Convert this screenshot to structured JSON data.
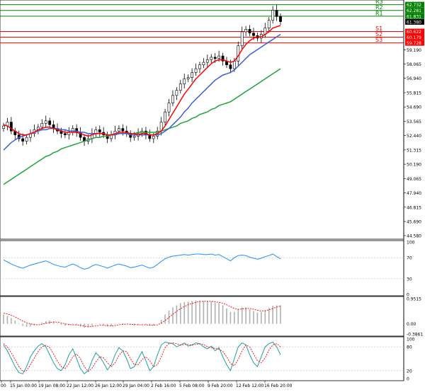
{
  "colors": {
    "background": "#ffffff",
    "grid_frame": "#000000",
    "bull_candle": "#ffffff",
    "bear_candle": "#000000",
    "resistance": "#008000",
    "support": "#ff0000",
    "ma_fast": "#ff0000",
    "ma_mid": "#3b5fd4",
    "ma_slow": "#22a33c",
    "rsi": "#1e90ff",
    "hist": "#b0b0b0",
    "signal": "#ff0000",
    "stoch_main": "#20a0a0",
    "stoch_signal": "#ff0000",
    "current_price_bg": "#000000"
  },
  "price_axis": {
    "ticks": [
      "59.190",
      "58.065",
      "56.940",
      "55.815",
      "54.690",
      "53.565",
      "52.440",
      "51.315",
      "50.190",
      "49.065",
      "47.940",
      "46.815",
      "45.690",
      "44.580"
    ]
  },
  "levels": [
    {
      "name": "R3",
      "price": "62.732",
      "kind": "resistance"
    },
    {
      "name": "R2",
      "price": "62.281",
      "kind": "resistance"
    },
    {
      "name": "R1",
      "price": "61.831",
      "kind": "resistance"
    },
    {
      "name": "S1",
      "price": "60.622",
      "kind": "support"
    },
    {
      "name": "S2",
      "price": "60.179",
      "kind": "support"
    },
    {
      "name": "S3",
      "price": "59.728",
      "kind": "support"
    }
  ],
  "current_price": "61.380",
  "rsi_panel": {
    "ticks": [
      "100",
      "70",
      "30",
      "0"
    ]
  },
  "macd_panel": {
    "ticks": [
      "0.9515",
      "0.00",
      "-0.3861"
    ]
  },
  "stoch_panel": {
    "ticks": [
      "100",
      "80",
      "20",
      "0"
    ]
  },
  "time_axis": {
    "labels": [
      "00",
      "15 Jan 00:00",
      "19 Jan 08:00",
      "22 Jan 12:00",
      "26 Jan 12:00",
      "29 Jan 04:00",
      "2 Feb 16:00",
      "5 Feb 08:00",
      "9 Feb 20:00",
      "12 Feb 12:00",
      "16 Feb 20:00"
    ]
  },
  "chart_data": {
    "type": "candlestick",
    "subtitle": "",
    "price_levels": {
      "R3": 62.732,
      "R2": 62.281,
      "R1": 61.831,
      "S1": 60.622,
      "S2": 60.179,
      "S3": 59.728,
      "last": 61.38
    },
    "closes": [
      53.2,
      53.5,
      52.8,
      52.5,
      52.2,
      52.0,
      52.3,
      52.6,
      52.9,
      53.1,
      53.4,
      53.6,
      53.3,
      53.0,
      52.8,
      52.6,
      52.5,
      52.7,
      53.0,
      52.7,
      52.3,
      52.0,
      52.2,
      52.6,
      52.9,
      52.7,
      52.5,
      52.2,
      52.5,
      52.8,
      53.0,
      52.8,
      52.6,
      52.3,
      52.4,
      52.6,
      52.8,
      52.5,
      52.2,
      52.4,
      52.8,
      53.5,
      54.3,
      55.0,
      55.6,
      56.0,
      56.5,
      56.9,
      57.0,
      57.4,
      57.7,
      58.0,
      58.2,
      58.4,
      58.6,
      58.5,
      58.7,
      58.3,
      58.0,
      57.7,
      58.3,
      59.5,
      60.6,
      60.8,
      60.5,
      60.3,
      60.1,
      60.4,
      60.9,
      61.5,
      62.3,
      61.8,
      61.4
    ],
    "ma_fast": [
      53.3,
      53.2,
      53.0,
      52.8,
      52.6,
      52.5,
      52.5,
      52.6,
      52.7,
      52.9,
      53.0,
      53.1,
      53.1,
      53.0,
      52.9,
      52.8,
      52.7,
      52.7,
      52.7,
      52.7,
      52.6,
      52.5,
      52.4,
      52.5,
      52.6,
      52.6,
      52.6,
      52.5,
      52.5,
      52.6,
      52.7,
      52.7,
      52.7,
      52.6,
      52.6,
      52.5,
      52.6,
      52.6,
      52.5,
      52.5,
      52.6,
      52.8,
      53.2,
      53.7,
      54.2,
      54.7,
      55.2,
      55.7,
      56.1,
      56.5,
      56.9,
      57.2,
      57.5,
      57.8,
      58.1,
      58.3,
      58.4,
      58.4,
      58.3,
      58.2,
      58.3,
      58.7,
      59.2,
      59.6,
      59.9,
      60.1,
      60.2,
      60.2,
      60.4,
      60.6,
      60.9,
      61.0,
      61.1
    ],
    "ma_mid": [
      51.3,
      51.6,
      51.9,
      52.1,
      52.3,
      52.4,
      52.5,
      52.6,
      52.7,
      52.8,
      52.9,
      52.9,
      53.0,
      53.0,
      53.0,
      52.9,
      52.9,
      52.8,
      52.8,
      52.8,
      52.7,
      52.7,
      52.6,
      52.6,
      52.6,
      52.6,
      52.6,
      52.5,
      52.5,
      52.5,
      52.6,
      52.6,
      52.6,
      52.5,
      52.5,
      52.5,
      52.5,
      52.5,
      52.5,
      52.5,
      52.5,
      52.6,
      52.8,
      53.0,
      53.3,
      53.6,
      53.9,
      54.3,
      54.6,
      55.0,
      55.3,
      55.6,
      55.9,
      56.2,
      56.5,
      56.8,
      57.0,
      57.2,
      57.3,
      57.4,
      57.6,
      57.9,
      58.2,
      58.5,
      58.8,
      59.0,
      59.2,
      59.4,
      59.6,
      59.8,
      60.0,
      60.2,
      60.4
    ],
    "ma_slow": [
      48.6,
      48.8,
      49.0,
      49.2,
      49.4,
      49.6,
      49.8,
      50.0,
      50.2,
      50.4,
      50.6,
      50.8,
      50.9,
      51.1,
      51.2,
      51.4,
      51.5,
      51.6,
      51.7,
      51.8,
      51.9,
      52.0,
      52.1,
      52.2,
      52.3,
      52.3,
      52.4,
      52.4,
      52.5,
      52.5,
      52.6,
      52.6,
      52.6,
      52.6,
      52.6,
      52.7,
      52.7,
      52.7,
      52.7,
      52.7,
      52.7,
      52.8,
      52.9,
      53.0,
      53.1,
      53.2,
      53.4,
      53.5,
      53.6,
      53.8,
      53.9,
      54.1,
      54.2,
      54.3,
      54.5,
      54.6,
      54.8,
      54.9,
      55.0,
      55.1,
      55.3,
      55.5,
      55.7,
      55.9,
      56.1,
      56.3,
      56.5,
      56.7,
      56.9,
      57.1,
      57.3,
      57.5,
      57.7
    ],
    "rsi": [
      66,
      62,
      58,
      55,
      52,
      50,
      53,
      56,
      58,
      60,
      62,
      64,
      61,
      57,
      55,
      53,
      52,
      55,
      58,
      55,
      51,
      48,
      50,
      54,
      57,
      55,
      53,
      50,
      53,
      56,
      58,
      56,
      54,
      51,
      52,
      54,
      56,
      53,
      50,
      52,
      57,
      63,
      68,
      71,
      73,
      74,
      75,
      76,
      75,
      76,
      77,
      77,
      76,
      76,
      77,
      75,
      76,
      72,
      68,
      64,
      70,
      74,
      75,
      74,
      71,
      69,
      67,
      69,
      72,
      74,
      77,
      72,
      68
    ],
    "macd_hist": [
      0.35,
      0.3,
      0.22,
      0.12,
      0.02,
      -0.08,
      -0.12,
      -0.1,
      -0.06,
      0.0,
      0.05,
      0.1,
      0.12,
      0.08,
      0.02,
      -0.04,
      -0.08,
      -0.06,
      -0.02,
      -0.04,
      -0.1,
      -0.15,
      -0.14,
      -0.08,
      -0.02,
      -0.03,
      -0.06,
      -0.1,
      -0.08,
      -0.03,
      0.02,
      0.02,
      0.0,
      -0.04,
      -0.06,
      -0.05,
      -0.02,
      -0.04,
      -0.08,
      -0.06,
      0.0,
      0.15,
      0.35,
      0.5,
      0.62,
      0.7,
      0.78,
      0.82,
      0.84,
      0.86,
      0.88,
      0.88,
      0.86,
      0.85,
      0.84,
      0.8,
      0.78,
      0.7,
      0.58,
      0.45,
      0.45,
      0.55,
      0.62,
      0.62,
      0.55,
      0.48,
      0.42,
      0.45,
      0.52,
      0.6,
      0.68,
      0.7,
      0.7
    ],
    "macd_signal": [
      0.4,
      0.37,
      0.32,
      0.26,
      0.18,
      0.1,
      0.04,
      0.0,
      -0.03,
      -0.04,
      -0.02,
      0.02,
      0.05,
      0.07,
      0.06,
      0.03,
      0.0,
      -0.03,
      -0.04,
      -0.04,
      -0.06,
      -0.09,
      -0.11,
      -0.1,
      -0.08,
      -0.06,
      -0.06,
      -0.07,
      -0.08,
      -0.07,
      -0.04,
      -0.02,
      -0.01,
      -0.02,
      -0.03,
      -0.04,
      -0.04,
      -0.04,
      -0.05,
      -0.06,
      -0.04,
      0.02,
      0.12,
      0.24,
      0.36,
      0.47,
      0.57,
      0.65,
      0.72,
      0.77,
      0.81,
      0.84,
      0.85,
      0.85,
      0.85,
      0.83,
      0.81,
      0.78,
      0.72,
      0.65,
      0.58,
      0.55,
      0.56,
      0.58,
      0.58,
      0.55,
      0.51,
      0.48,
      0.49,
      0.53,
      0.58,
      0.63,
      0.67
    ],
    "stoch_main": [
      85,
      70,
      50,
      30,
      15,
      12,
      30,
      55,
      70,
      82,
      88,
      80,
      60,
      40,
      25,
      20,
      35,
      60,
      75,
      50,
      25,
      12,
      20,
      45,
      65,
      55,
      40,
      22,
      35,
      60,
      78,
      70,
      50,
      25,
      30,
      50,
      68,
      45,
      20,
      30,
      60,
      85,
      92,
      90,
      88,
      80,
      85,
      90,
      82,
      85,
      90,
      88,
      80,
      75,
      82,
      70,
      78,
      55,
      35,
      20,
      50,
      80,
      90,
      85,
      60,
      40,
      30,
      55,
      80,
      88,
      92,
      80,
      60
    ],
    "stoch_signal": [
      88,
      80,
      65,
      48,
      30,
      18,
      20,
      35,
      52,
      68,
      80,
      84,
      78,
      62,
      44,
      30,
      25,
      38,
      55,
      62,
      50,
      30,
      18,
      26,
      42,
      55,
      52,
      40,
      30,
      40,
      58,
      70,
      68,
      50,
      35,
      35,
      48,
      55,
      45,
      30,
      35,
      55,
      78,
      88,
      90,
      88,
      84,
      86,
      86,
      84,
      86,
      88,
      86,
      80,
      78,
      76,
      74,
      68,
      55,
      38,
      32,
      48,
      70,
      85,
      80,
      62,
      45,
      40,
      52,
      72,
      85,
      88,
      80
    ],
    "x_labels": [
      "00",
      "15 Jan 00:00",
      "19 Jan 08:00",
      "22 Jan 12:00",
      "26 Jan 12:00",
      "29 Jan 04:00",
      "2 Feb 16:00",
      "5 Feb 08:00",
      "9 Feb 20:00",
      "12 Feb 12:00",
      "16 Feb 20:00"
    ],
    "y_ticks_price": [
      59.19,
      58.065,
      56.94,
      55.815,
      54.69,
      53.565,
      52.44,
      51.315,
      50.19,
      49.065,
      47.94,
      46.815,
      45.69,
      44.58
    ],
    "grid": false
  }
}
